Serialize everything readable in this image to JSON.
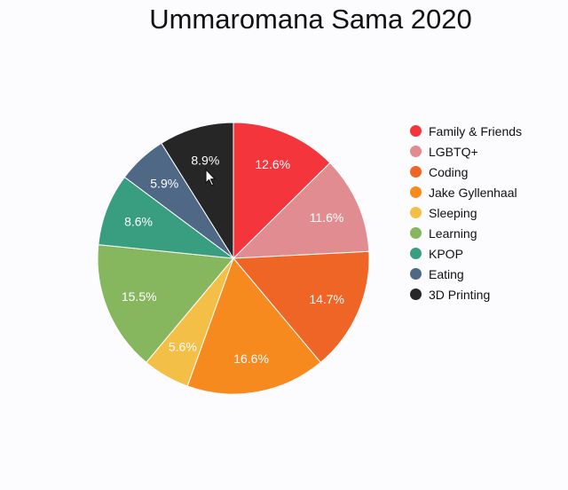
{
  "chart_data": {
    "type": "pie",
    "title": "Ummaromana Sama 2020",
    "categories": [
      "Family & Friends",
      "LGBTQ+",
      "Coding",
      "Jake Gyllenhaal",
      "Sleeping",
      "Learning",
      "KPOP",
      "Eating",
      "3D Printing"
    ],
    "values": [
      12.6,
      11.6,
      14.7,
      16.6,
      5.6,
      15.5,
      8.6,
      5.9,
      8.9
    ],
    "labels": [
      "12.6%",
      "11.6%",
      "14.7%",
      "16.6%",
      "5.6%",
      "15.5%",
      "8.6%",
      "5.9%",
      "8.9%"
    ],
    "colors": [
      "#f4363c",
      "#e08c91",
      "#ee6525",
      "#f68a1f",
      "#f4bf47",
      "#86b75f",
      "#399e7f",
      "#4f6886",
      "#262626"
    ],
    "legend_position": "right"
  }
}
